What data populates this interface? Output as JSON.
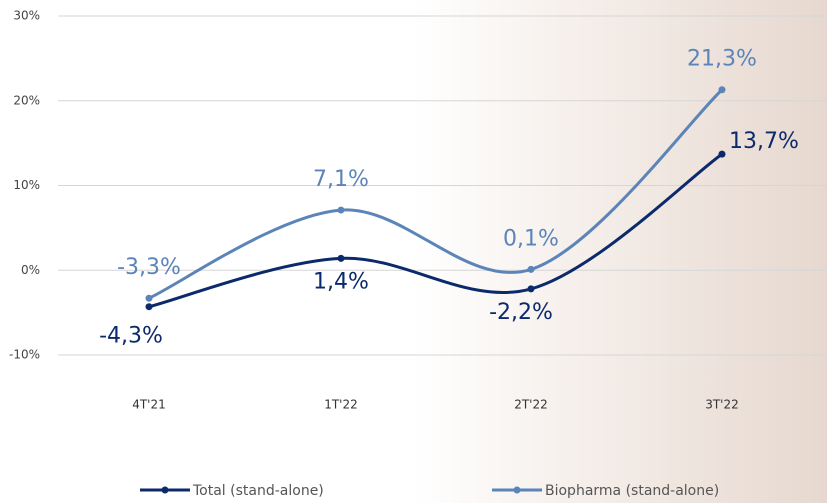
{
  "chart_data": {
    "type": "line",
    "categories": [
      "4T'21",
      "1T'22",
      "2T'22",
      "3T'22"
    ],
    "series": [
      {
        "name": "Total (stand-alone)",
        "color": "#0b2a6c",
        "values": [
          -4.3,
          1.4,
          -2.2,
          13.7
        ],
        "value_labels": [
          "-4,3%",
          "1,4%",
          "-2,2%",
          "13,7%"
        ]
      },
      {
        "name": "Biopharma (stand-alone)",
        "color": "#5b84b8",
        "values": [
          -3.3,
          7.1,
          0.1,
          21.3
        ],
        "value_labels": [
          "-3,3%",
          "7,1%",
          "0,1%",
          "21,3%"
        ]
      }
    ],
    "ylim": [
      -10,
      30
    ],
    "yticks": [
      {
        "value": -10,
        "label": "-10%"
      },
      {
        "value": 0,
        "label": "0%"
      },
      {
        "value": 10,
        "label": "10%"
      },
      {
        "value": 20,
        "label": "20%"
      },
      {
        "value": 30,
        "label": "30%"
      }
    ],
    "grid": true,
    "legend": "bottom"
  }
}
